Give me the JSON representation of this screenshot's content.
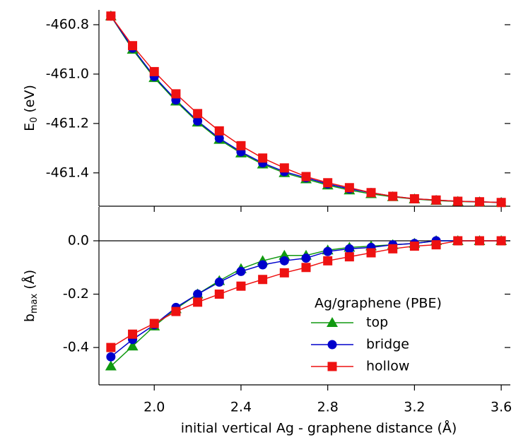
{
  "chart_data": [
    {
      "type": "line",
      "ylabel": [
        "E",
        "0",
        "(eV)"
      ],
      "ylim": [
        -461.535,
        -460.74
      ],
      "yticks": [
        -460.8,
        {
          "value": -461.0,
          "label": "-461.0"
        },
        -461.2,
        -461.4
      ],
      "series": [
        {
          "name": "top",
          "color": "#109910",
          "marker": "triangle",
          "values": [
            -460.765,
            -460.9,
            -461.015,
            -461.11,
            -461.195,
            -461.265,
            -461.32,
            -461.365,
            -461.4,
            -461.425,
            -461.45,
            -461.47,
            -461.485,
            -461.497,
            -461.506,
            -461.512,
            -461.516,
            -461.518,
            -461.52
          ]
        },
        {
          "name": "bridge",
          "color": "#0000cc",
          "marker": "circle",
          "values": [
            -460.765,
            -460.895,
            -461.01,
            -461.105,
            -461.19,
            -461.26,
            -461.315,
            -461.36,
            -461.395,
            -461.42,
            -461.445,
            -461.465,
            -461.48,
            -461.495,
            -461.505,
            -461.51,
            -461.515,
            -461.517,
            -461.52
          ]
        },
        {
          "name": "hollow",
          "color": "#ee1111",
          "marker": "square",
          "values": [
            -460.765,
            -460.885,
            -460.99,
            -461.08,
            -461.16,
            -461.23,
            -461.29,
            -461.34,
            -461.38,
            -461.415,
            -461.44,
            -461.46,
            -461.48,
            -461.495,
            -461.505,
            -461.51,
            -461.515,
            -461.517,
            -461.52
          ]
        }
      ]
    },
    {
      "type": "line",
      "xlabel": "initial vertical Ag - graphene distance (Å)",
      "ylabel": [
        "b",
        "max",
        "(Å)"
      ],
      "x": [
        1.8,
        1.9,
        2.0,
        2.1,
        2.2,
        2.3,
        2.4,
        2.5,
        2.6,
        2.7,
        2.8,
        2.9,
        3.0,
        3.1,
        3.2,
        3.3,
        3.4,
        3.5,
        3.6
      ],
      "xlim": [
        1.745,
        3.642
      ],
      "xticks": [
        {
          "value": 2.0,
          "label": "2.0"
        },
        2.4,
        2.8,
        3.2,
        3.6
      ],
      "ylim": [
        -0.54,
        0.127
      ],
      "yticks": [
        {
          "value": 0,
          "label": "0.0"
        },
        -0.2,
        -0.4
      ],
      "zero_line": true,
      "legend_title": "Ag/graphene (PBE)",
      "series": [
        {
          "name": "top",
          "color": "#109910",
          "marker": "triangle",
          "values": [
            -0.47,
            -0.395,
            -0.32,
            -0.255,
            -0.2,
            -0.15,
            -0.105,
            -0.075,
            -0.055,
            -0.055,
            -0.035,
            -0.025,
            -0.02,
            -0.015,
            -0.01,
            0,
            0,
            0,
            0
          ]
        },
        {
          "name": "bridge",
          "color": "#0000cc",
          "marker": "circle",
          "values": [
            -0.435,
            -0.37,
            -0.315,
            -0.25,
            -0.2,
            -0.155,
            -0.115,
            -0.09,
            -0.075,
            -0.065,
            -0.04,
            -0.03,
            -0.025,
            -0.015,
            -0.01,
            0,
            0,
            0,
            0
          ]
        },
        {
          "name": "hollow",
          "color": "#ee1111",
          "marker": "square",
          "values": [
            -0.4,
            -0.35,
            -0.31,
            -0.265,
            -0.23,
            -0.2,
            -0.17,
            -0.145,
            -0.12,
            -0.1,
            -0.075,
            -0.06,
            -0.045,
            -0.03,
            -0.02,
            -0.015,
            0,
            0,
            0
          ]
        }
      ]
    }
  ]
}
